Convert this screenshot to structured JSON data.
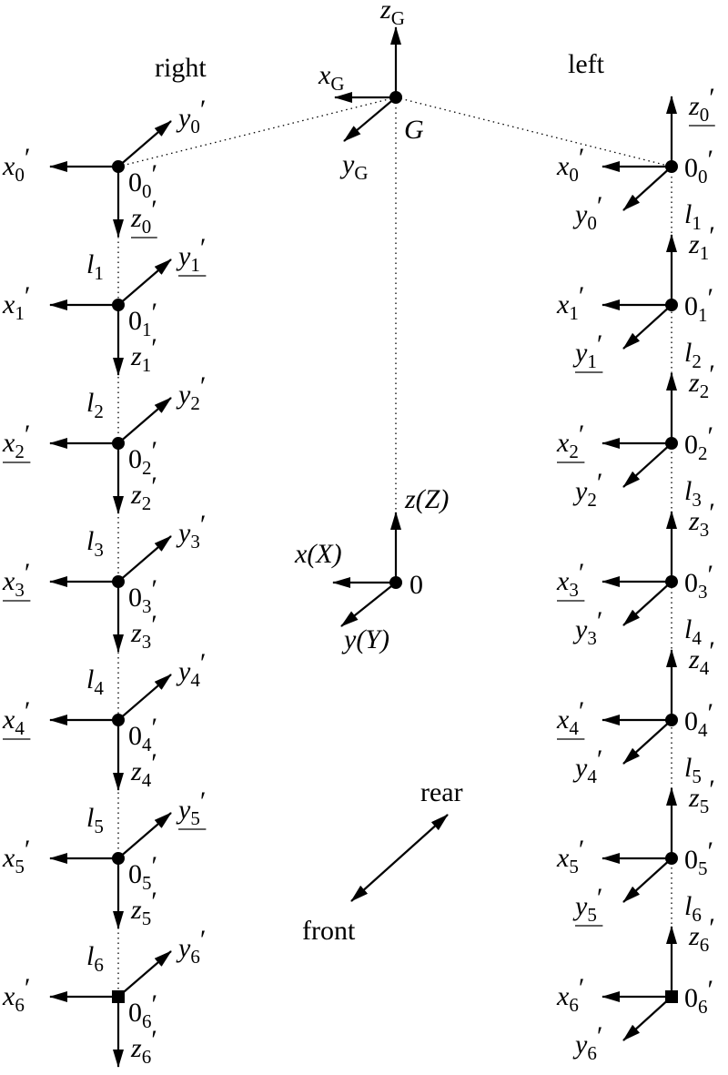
{
  "column_titles": {
    "right": "right",
    "left": "left"
  },
  "global_frame": {
    "point": "G",
    "z": {
      "base": "z",
      "sub": "G",
      "prime": ""
    },
    "x": {
      "base": "x",
      "sub": "G",
      "prime": ""
    },
    "y": {
      "base": "y",
      "sub": "G",
      "prime": ""
    }
  },
  "world_frame": {
    "origin": "0",
    "z": "z(Z)",
    "x": "x(X)",
    "y": "y(Y)"
  },
  "direction": {
    "rear": "rear",
    "front": "front"
  },
  "right_chain": [
    {
      "o": {
        "base": "0",
        "sub": "0",
        "prime": "′"
      },
      "x": {
        "base": "x",
        "sub": "0",
        "prime": "′",
        "u": false
      },
      "y": {
        "base": "y",
        "sub": "0",
        "prime": "′",
        "u": false
      },
      "z": {
        "base": "z",
        "sub": "0",
        "prime": "′",
        "u": true
      },
      "marker": "circle"
    },
    {
      "o": {
        "base": "0",
        "sub": "1",
        "prime": "′"
      },
      "x": {
        "base": "x",
        "sub": "1",
        "prime": "′",
        "u": false
      },
      "y": {
        "base": "y",
        "sub": "1",
        "prime": "′",
        "u": true
      },
      "z": {
        "base": "z",
        "sub": "1",
        "prime": "′",
        "u": false
      },
      "marker": "circle"
    },
    {
      "o": {
        "base": "0",
        "sub": "2",
        "prime": "′"
      },
      "x": {
        "base": "x",
        "sub": "2",
        "prime": "′",
        "u": true
      },
      "y": {
        "base": "y",
        "sub": "2",
        "prime": "′",
        "u": false
      },
      "z": {
        "base": "z",
        "sub": "2",
        "prime": "′",
        "u": false
      },
      "marker": "circle"
    },
    {
      "o": {
        "base": "0",
        "sub": "3",
        "prime": "′"
      },
      "x": {
        "base": "x",
        "sub": "3",
        "prime": "′",
        "u": true
      },
      "y": {
        "base": "y",
        "sub": "3",
        "prime": "′",
        "u": false
      },
      "z": {
        "base": "z",
        "sub": "3",
        "prime": "′",
        "u": false
      },
      "marker": "circle"
    },
    {
      "o": {
        "base": "0",
        "sub": "4",
        "prime": "′"
      },
      "x": {
        "base": "x",
        "sub": "4",
        "prime": "′",
        "u": true
      },
      "y": {
        "base": "y",
        "sub": "4",
        "prime": "′",
        "u": false
      },
      "z": {
        "base": "z",
        "sub": "4",
        "prime": "′",
        "u": false
      },
      "marker": "circle"
    },
    {
      "o": {
        "base": "0",
        "sub": "5",
        "prime": "′"
      },
      "x": {
        "base": "x",
        "sub": "5",
        "prime": "′",
        "u": false
      },
      "y": {
        "base": "y",
        "sub": "5",
        "prime": "′",
        "u": true
      },
      "z": {
        "base": "z",
        "sub": "5",
        "prime": "′",
        "u": false
      },
      "marker": "circle"
    },
    {
      "o": {
        "base": "0",
        "sub": "6",
        "prime": "′"
      },
      "x": {
        "base": "x",
        "sub": "6",
        "prime": "′",
        "u": false
      },
      "y": {
        "base": "y",
        "sub": "6",
        "prime": "′",
        "u": false
      },
      "z": {
        "base": "z",
        "sub": "6",
        "prime": "′",
        "u": false
      },
      "marker": "square"
    }
  ],
  "left_chain": [
    {
      "o": {
        "base": "0",
        "sub": "0",
        "prime": "′"
      },
      "x": {
        "base": "x",
        "sub": "0",
        "prime": "′",
        "u": false
      },
      "y": {
        "base": "y",
        "sub": "0",
        "prime": "′",
        "u": false
      },
      "z": {
        "base": "z",
        "sub": "0",
        "prime": "′",
        "u": true
      },
      "marker": "circle"
    },
    {
      "o": {
        "base": "0",
        "sub": "1",
        "prime": "′"
      },
      "x": {
        "base": "x",
        "sub": "1",
        "prime": "′",
        "u": false
      },
      "y": {
        "base": "y",
        "sub": "1",
        "prime": "′",
        "u": true
      },
      "z": {
        "base": "z",
        "sub": "1",
        "prime": "′",
        "u": false
      },
      "marker": "circle"
    },
    {
      "o": {
        "base": "0",
        "sub": "2",
        "prime": "′"
      },
      "x": {
        "base": "x",
        "sub": "2",
        "prime": "′",
        "u": true
      },
      "y": {
        "base": "y",
        "sub": "2",
        "prime": "′",
        "u": false
      },
      "z": {
        "base": "z",
        "sub": "2",
        "prime": "′",
        "u": false
      },
      "marker": "circle"
    },
    {
      "o": {
        "base": "0",
        "sub": "3",
        "prime": "′"
      },
      "x": {
        "base": "x",
        "sub": "3",
        "prime": "′",
        "u": true
      },
      "y": {
        "base": "y",
        "sub": "3",
        "prime": "′",
        "u": false
      },
      "z": {
        "base": "z",
        "sub": "3",
        "prime": "′",
        "u": false
      },
      "marker": "circle"
    },
    {
      "o": {
        "base": "0",
        "sub": "4",
        "prime": "′"
      },
      "x": {
        "base": "x",
        "sub": "4",
        "prime": "′",
        "u": true
      },
      "y": {
        "base": "y",
        "sub": "4",
        "prime": "′",
        "u": false
      },
      "z": {
        "base": "z",
        "sub": "4",
        "prime": "′",
        "u": false
      },
      "marker": "circle"
    },
    {
      "o": {
        "base": "0",
        "sub": "5",
        "prime": "′"
      },
      "x": {
        "base": "x",
        "sub": "5",
        "prime": "′",
        "u": false
      },
      "y": {
        "base": "y",
        "sub": "5",
        "prime": "′",
        "u": true
      },
      "z": {
        "base": "z",
        "sub": "5",
        "prime": "′",
        "u": false
      },
      "marker": "circle"
    },
    {
      "o": {
        "base": "0",
        "sub": "6",
        "prime": "′"
      },
      "x": {
        "base": "x",
        "sub": "6",
        "prime": "′",
        "u": false
      },
      "y": {
        "base": "y",
        "sub": "6",
        "prime": "′",
        "u": false
      },
      "z": {
        "base": "z",
        "sub": "6",
        "prime": "′",
        "u": false
      },
      "marker": "square"
    }
  ],
  "links": [
    {
      "base": "l",
      "sub": "1"
    },
    {
      "base": "l",
      "sub": "2"
    },
    {
      "base": "l",
      "sub": "3"
    },
    {
      "base": "l",
      "sub": "4"
    },
    {
      "base": "l",
      "sub": "5"
    },
    {
      "base": "l",
      "sub": "6"
    }
  ]
}
